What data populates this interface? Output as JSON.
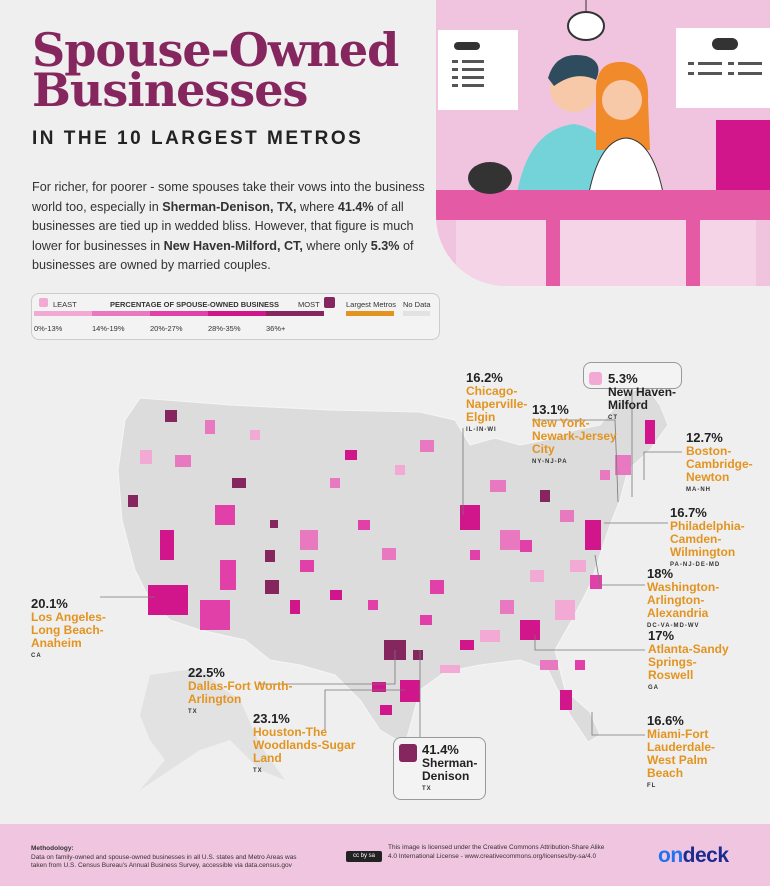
{
  "header": {
    "title_line1": "Spouse-Owned",
    "title_line2": "Businesses",
    "subtitle": "IN THE 10 LARGEST METROS",
    "intro": {
      "p1": "For richer, for poorer - some spouses take their vows into the business world too, especially in ",
      "b1": "Sherman-Denison, TX,",
      "p2": " where ",
      "b2": "41.4%",
      "p3": " of all businesses are tied up in wedded bliss. However, that figure is much lower for businesses in ",
      "b3": "New Haven-Milford, CT,",
      "p4": " where only ",
      "b4": "5.3%",
      "p5": " of businesses are owned by married couples."
    }
  },
  "legend": {
    "least": "LEAST",
    "title": "PERCENTAGE OF SPOUSE-OWNED BUSINESS",
    "most": "MOST",
    "bins": [
      {
        "label": "0%-13%",
        "color": "#f2a9d3"
      },
      {
        "label": "14%-19%",
        "color": "#e879c0"
      },
      {
        "label": "20%-27%",
        "color": "#e040a8"
      },
      {
        "label": "28%-35%",
        "color": "#d0168a"
      },
      {
        "label": "36%+",
        "color": "#86265f"
      }
    ],
    "largest_metros": {
      "label": "Largest Metros",
      "color": "#e39420"
    },
    "no_data": {
      "label": "No Data",
      "color": "#e2e2e2"
    }
  },
  "metros": [
    {
      "pct": "16.2%",
      "name": "Chicago-Naperville-Elgin",
      "states": "IL-IN-WI"
    },
    {
      "pct": "13.1%",
      "name": "New York-Newark-Jersey City",
      "states": "NY-NJ-PA"
    },
    {
      "pct": "5.3%",
      "name": "New Haven-Milford",
      "states": "CT"
    },
    {
      "pct": "12.7%",
      "name": "Boston-Cambridge-Newton",
      "states": "MA-NH"
    },
    {
      "pct": "16.7%",
      "name": "Philadelphia-Camden-Wilmington",
      "states": "PA-NJ-DE-MD"
    },
    {
      "pct": "18%",
      "name": "Washington-Arlington-Alexandria",
      "states": "DC-VA-MD-WV"
    },
    {
      "pct": "20.1%",
      "name": "Los Angeles-Long Beach-Anaheim",
      "states": "CA"
    },
    {
      "pct": "17%",
      "name": "Atlanta-Sandy Springs-Roswell",
      "states": "GA"
    },
    {
      "pct": "22.5%",
      "name": "Dallas-Fort Worth-Arlington",
      "states": "TX"
    },
    {
      "pct": "23.1%",
      "name": "Houston-The Woodlands-Sugar Land",
      "states": "TX"
    },
    {
      "pct": "16.6%",
      "name": "Miami-Fort Lauderdale-West Palm Beach",
      "states": "FL"
    },
    {
      "pct": "41.4%",
      "name": "Sherman-Denison",
      "states": "TX"
    }
  ],
  "footer": {
    "methodology_title": "Methodology:",
    "methodology_text": "Data on family-owned and spouse-owned businesses in all U.S. states and Metro Areas was taken from U.S. Census Bureau's Annual Business Survey, accessible via ",
    "methodology_link": "data.census.gov",
    "license": "This image is licensed under the Creative Commons Attribution-Share Alike 4.0 International License - www.creativecommons.org/licenses/by-sa/4.0",
    "cc_badge": "cc by sa",
    "logo_on": "on",
    "logo_deck": "deck"
  }
}
